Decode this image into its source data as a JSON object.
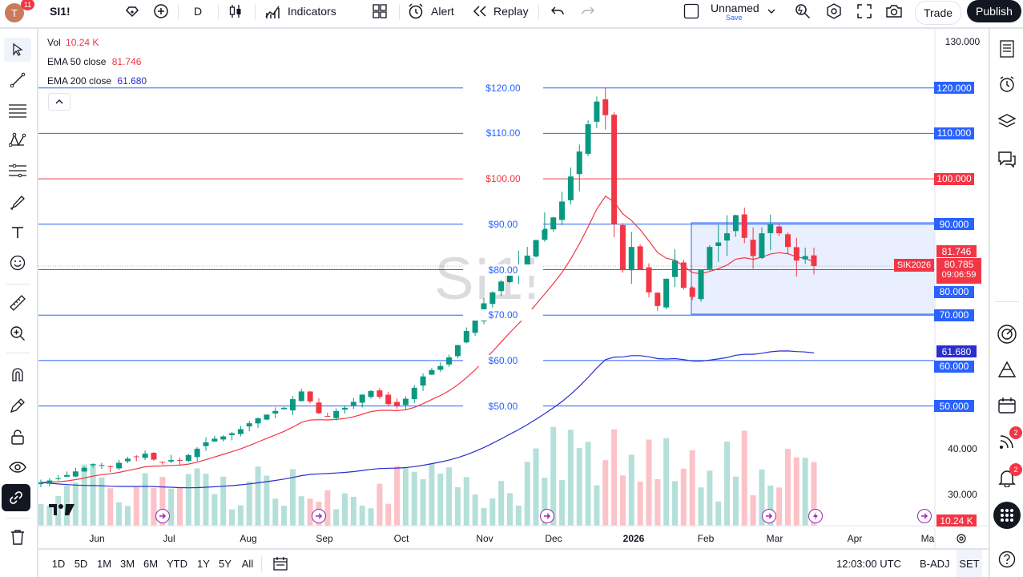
{
  "toolbar": {
    "avatar_letter": "T",
    "avatar_badge": "11",
    "symbol": "SI1!",
    "interval": "D",
    "indicators": "Indicators",
    "alert": "Alert",
    "replay": "Replay",
    "layout_name": "Unnamed",
    "layout_save": "Save",
    "trade": "Trade",
    "publish": "Publish"
  },
  "legend": {
    "vol_label": "Vol",
    "vol_value": "10.24 K",
    "ema50_label": "EMA 50 close",
    "ema50_value": "81.746",
    "ema200_label": "EMA 200 close",
    "ema200_value": "61.680"
  },
  "watermark": "SI1!",
  "colors": {
    "up": "#089981",
    "down": "#f23645",
    "level": "#2962ff",
    "ema50": "#f23645",
    "ema200": "#2a2ecd"
  },
  "price_scale": {
    "ticks": [
      "130.000",
      "40.000",
      "30.000"
    ],
    "level_labels": [
      "120.000",
      "110.000",
      "100.000",
      "90.000",
      "80.000",
      "70.000",
      "60.000",
      "50.000"
    ],
    "ema50_label": "81.746",
    "last_price": "80.785",
    "countdown": "09:06:59",
    "ema200_label": "61.680",
    "vol_label": "10.24 K",
    "contract_tag": "SIK2026"
  },
  "level_texts": [
    "$120.00",
    "$110.00",
    "$100.00",
    "$90.00",
    "$80.00",
    "$70.00",
    "$60.00",
    "$50.00"
  ],
  "time_axis": [
    "Jun",
    "Jul",
    "Aug",
    "Sep",
    "Oct",
    "Nov",
    "Dec",
    "2026",
    "Feb",
    "Mar",
    "Apr",
    "Ma"
  ],
  "bottombar": {
    "ranges": [
      "1D",
      "5D",
      "1M",
      "3M",
      "6M",
      "YTD",
      "1Y",
      "5Y",
      "All"
    ],
    "clock": "12:03:00 UTC",
    "badj": "B-ADJ",
    "session": "SET"
  },
  "rightbar": {
    "badge_1": "2",
    "badge_2": "2"
  },
  "chart_data": {
    "type": "candlestick",
    "symbol": "SI1!",
    "ylim": [
      25,
      133
    ],
    "x": [
      "Jun",
      "Jul",
      "Aug",
      "Sep",
      "Oct",
      "Nov",
      "Dec",
      "2026",
      "Feb",
      "Mar",
      "Apr",
      "Ma"
    ],
    "levels": [
      120,
      110,
      100,
      90,
      80,
      70,
      60,
      50
    ],
    "box": {
      "low": 70,
      "high": 90,
      "start": "late Jan",
      "end": "Mar"
    },
    "ema_50_last": 81.746,
    "ema_200_last": 61.68,
    "last_price": 80.785,
    "volume_last": "10.24 K",
    "close_series": [
      33.2,
      33.6,
      34.1,
      34.8,
      35.6,
      36.4,
      37.2,
      37.0,
      36.6,
      37.5,
      38.4,
      38.9,
      39.5,
      38.2,
      37.6,
      38.1,
      38.0,
      39.2,
      40.6,
      42.0,
      42.8,
      43.3,
      44.0,
      44.9,
      46.2,
      47.3,
      48.1,
      48.9,
      49.6,
      51.5,
      53.2,
      51.0,
      48.4,
      47.8,
      48.9,
      49.6,
      50.9,
      52.5,
      53.3,
      52.0,
      50.4,
      50.0,
      51.6,
      54.0,
      56.5,
      57.9,
      58.8,
      60.7,
      63.4,
      66.5,
      69.2,
      72.6,
      75.0,
      77.4,
      79.2,
      80.6,
      83.1,
      86.5,
      89.0,
      91.5,
      95.0,
      100.5,
      106.0,
      112.0,
      117.0,
      114.0,
      90.0,
      80.0,
      85.0,
      80.0,
      75.0,
      72.0,
      78.0,
      82.0,
      76.0,
      74.0,
      80.0,
      85.0,
      86.0,
      88.0,
      92.0,
      87.0,
      83.0,
      88.0,
      90.0,
      88.0,
      85.0,
      82.0,
      83.0,
      80.8
    ]
  }
}
